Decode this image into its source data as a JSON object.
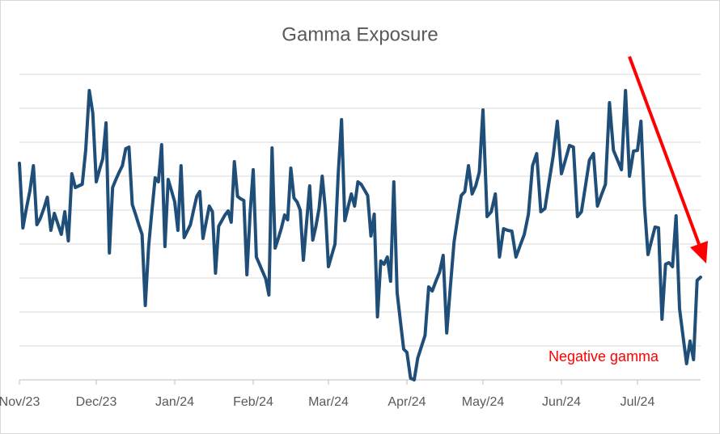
{
  "chart_data": {
    "type": "line",
    "title": "Gamma Exposure",
    "annotation": "Negative gamma",
    "annotation_color": "#ff0000",
    "categories": [
      "Nov/23",
      null,
      null,
      null,
      null,
      null,
      null,
      null,
      null,
      null,
      null,
      null,
      null,
      null,
      null,
      null,
      null,
      null,
      null,
      null,
      null,
      null,
      "Dec/23",
      null,
      null,
      null,
      null,
      null,
      null,
      null,
      null,
      null,
      null,
      null,
      null,
      null,
      null,
      null,
      null,
      null,
      null,
      null,
      null,
      null,
      null,
      null,
      "Jan/24",
      null,
      null,
      null,
      null,
      null,
      null,
      null,
      null,
      null,
      null,
      null,
      null,
      null,
      null,
      null,
      null,
      null,
      null,
      null,
      null,
      null,
      null,
      null,
      null,
      "Feb/24",
      null,
      null,
      null,
      null,
      null,
      null,
      null,
      null,
      null,
      null,
      null,
      null,
      null,
      null,
      null,
      null,
      null,
      null,
      null,
      null,
      null,
      null,
      null,
      "Mar/24",
      null,
      null,
      null,
      null,
      null,
      null,
      null,
      null,
      null,
      null,
      null,
      null,
      null,
      null,
      null,
      null,
      null,
      null,
      null,
      null,
      null,
      null,
      null,
      "Apr/24",
      null,
      null,
      null,
      null,
      null,
      null,
      null,
      null,
      null,
      null,
      null,
      null,
      null,
      null,
      null,
      null,
      null,
      null,
      null,
      null,
      "May/24",
      null,
      null,
      null,
      null,
      null,
      null,
      null,
      null,
      null,
      null,
      null,
      null,
      null,
      null,
      null,
      null,
      null,
      null,
      "Jun/24",
      null,
      null,
      null,
      null,
      null,
      null,
      null,
      null,
      null,
      null,
      null,
      null,
      null,
      null,
      null,
      null,
      null,
      null,
      "Jul/24",
      null,
      null,
      null,
      null,
      null,
      null,
      null,
      null,
      null,
      null,
      null,
      null,
      null,
      null,
      null,
      null,
      null,
      null
    ],
    "series": [
      {
        "name": "Gamma Exposure",
        "color": "#1f4e79",
        "values": [
          268,
          188,
          212,
          234,
          265,
          192,
          200,
          212,
          226,
          185,
          206,
          193,
          180,
          208,
          172,
          255,
          238,
          240,
          242,
          285,
          358,
          330,
          245,
          260,
          274,
          318,
          157,
          238,
          248,
          257,
          265,
          286,
          288,
          217,
          205,
          192,
          180,
          92,
          165,
          208,
          250,
          245,
          291,
          165,
          248,
          234,
          220,
          185,
          265,
          176,
          184,
          192,
          210,
          227,
          233,
          175,
          195,
          215,
          208,
          132,
          190,
          197,
          204,
          209,
          195,
          270,
          227,
          224,
          222,
          130,
          205,
          260,
          152,
          143,
          134,
          125,
          105,
          287,
          163,
          175,
          188,
          204,
          198,
          262,
          225,
          220,
          210,
          148,
          194,
          240,
          173,
          190,
          212,
          252,
          212,
          140,
          154,
          168,
          255,
          322,
          197,
          214,
          230,
          215,
          245,
          242,
          235,
          228,
          178,
          205,
          78,
          147,
          143,
          152,
          122,
          245,
          108,
          73,
          38,
          34,
          2,
          0,
          27,
          41,
          55,
          115,
          110,
          122,
          133,
          154,
          58,
          115,
          170,
          200,
          228,
          233,
          265,
          230,
          240,
          257,
          334,
          202,
          208,
          230,
          152,
          187,
          185,
          184,
          152,
          166,
          180,
          205,
          265,
          280,
          208,
          212,
          245,
          277,
          320,
          255,
          272,
          290,
          288,
          202,
          208,
          240,
          272,
          280,
          215,
          229,
          242,
          343,
          284,
          272,
          260,
          358,
          252,
          283,
          284,
          320,
          215,
          155,
          172,
          189,
          188,
          75,
          143,
          145,
          140,
          203,
          88,
          54,
          20,
          48,
          25,
          123,
          127
        ]
      }
    ],
    "ylim": [
      0,
      378
    ],
    "yticks": [
      0,
      42,
      84,
      126,
      168,
      210,
      252,
      294,
      336,
      378
    ],
    "ytick_labels": false,
    "grid": true,
    "legend": false
  }
}
